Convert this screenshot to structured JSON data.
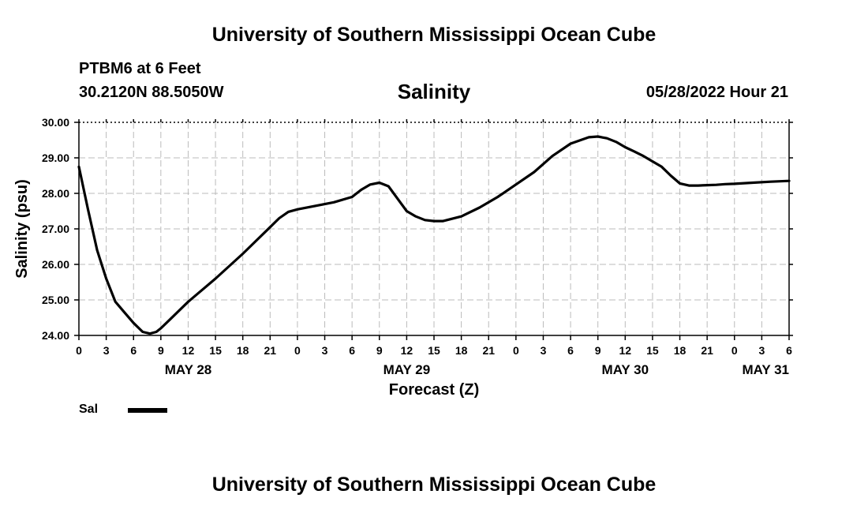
{
  "header": {
    "title": "University of Southern Mississippi Ocean Cube",
    "station": "PTBM6 at 6 Feet",
    "coords": "30.2120N  88.5050W",
    "subtitle": "Salinity",
    "datetime": "05/28/2022 Hour 21"
  },
  "footer": {
    "title": "University of Southern Mississippi Ocean Cube"
  },
  "legend": {
    "label": "Sal",
    "color": "#000000"
  },
  "chart_data": {
    "type": "line",
    "title": "Salinity",
    "xlabel": "Forecast (Z)",
    "ylabel": "Salinity (psu)",
    "ylim": [
      24.0,
      30.0
    ],
    "yticks": [
      "24.00",
      "25.00",
      "26.00",
      "27.00",
      "28.00",
      "29.00",
      "30.00"
    ],
    "xlim_hours": [
      0,
      78
    ],
    "x_tick_step_hours": 3,
    "x_tick_labels": [
      "0",
      "3",
      "6",
      "9",
      "12",
      "15",
      "18",
      "21",
      "0",
      "3",
      "6",
      "9",
      "12",
      "15",
      "18",
      "21",
      "0",
      "3",
      "6",
      "9",
      "12",
      "15",
      "18",
      "21",
      "0",
      "3",
      "6"
    ],
    "day_labels": [
      {
        "label": "MAY 28",
        "hour": 12
      },
      {
        "label": "MAY 29",
        "hour": 36
      },
      {
        "label": "MAY 30",
        "hour": 60
      },
      {
        "label": "MAY 31",
        "hour": 78
      }
    ],
    "grid": true,
    "series": [
      {
        "name": "Sal",
        "x_hours": [
          0,
          1,
          2,
          3,
          4,
          5,
          6,
          7,
          7.8,
          8.5,
          9,
          10,
          12,
          15,
          18,
          20,
          21,
          22,
          23,
          24,
          26,
          28,
          30,
          31,
          32,
          33,
          34,
          35,
          36,
          37,
          38,
          39,
          40,
          42,
          44,
          46,
          48,
          50,
          52,
          54,
          56,
          57,
          58,
          59,
          60,
          61,
          62,
          63,
          64,
          65,
          66,
          67,
          68,
          69,
          70,
          71,
          72,
          74,
          76,
          78
        ],
        "values": [
          28.75,
          27.55,
          26.4,
          25.6,
          24.95,
          24.65,
          24.35,
          24.1,
          24.05,
          24.1,
          24.2,
          24.45,
          24.95,
          25.6,
          26.3,
          26.8,
          27.05,
          27.3,
          27.48,
          27.55,
          27.65,
          27.75,
          27.9,
          28.1,
          28.25,
          28.3,
          28.2,
          27.85,
          27.5,
          27.35,
          27.25,
          27.22,
          27.22,
          27.35,
          27.6,
          27.9,
          28.25,
          28.6,
          29.05,
          29.4,
          29.58,
          29.6,
          29.55,
          29.45,
          29.3,
          29.18,
          29.05,
          28.9,
          28.75,
          28.5,
          28.28,
          28.22,
          28.22,
          28.23,
          28.24,
          28.26,
          28.27,
          28.3,
          28.33,
          28.35
        ]
      }
    ]
  }
}
